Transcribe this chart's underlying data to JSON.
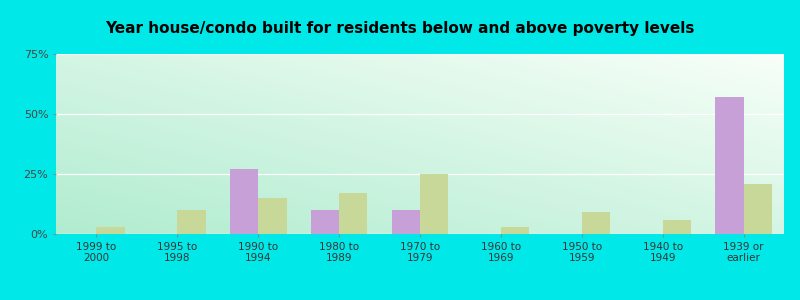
{
  "title": "Year house/condo built for residents below and above poverty levels",
  "categories": [
    "1999 to\n2000",
    "1995 to\n1998",
    "1990 to\n1994",
    "1980 to\n1989",
    "1970 to\n1979",
    "1960 to\n1969",
    "1950 to\n1959",
    "1940 to\n1949",
    "1939 or\nearlier"
  ],
  "below_poverty": [
    0,
    0,
    27,
    10,
    10,
    0,
    0,
    0,
    57
  ],
  "above_poverty": [
    3,
    10,
    15,
    17,
    25,
    3,
    9,
    6,
    21
  ],
  "below_color": "#c8a0d8",
  "above_color": "#c8d898",
  "bg_color": "#00e8e8",
  "ylim": [
    0,
    75
  ],
  "yticks": [
    0,
    25,
    50,
    75
  ],
  "ytick_labels": [
    "0%",
    "25%",
    "50%",
    "75%"
  ],
  "bar_width": 0.35,
  "title_fontsize": 11,
  "grad_bottom_left": "#b0ecd0",
  "grad_top_right": "#f8fff8"
}
